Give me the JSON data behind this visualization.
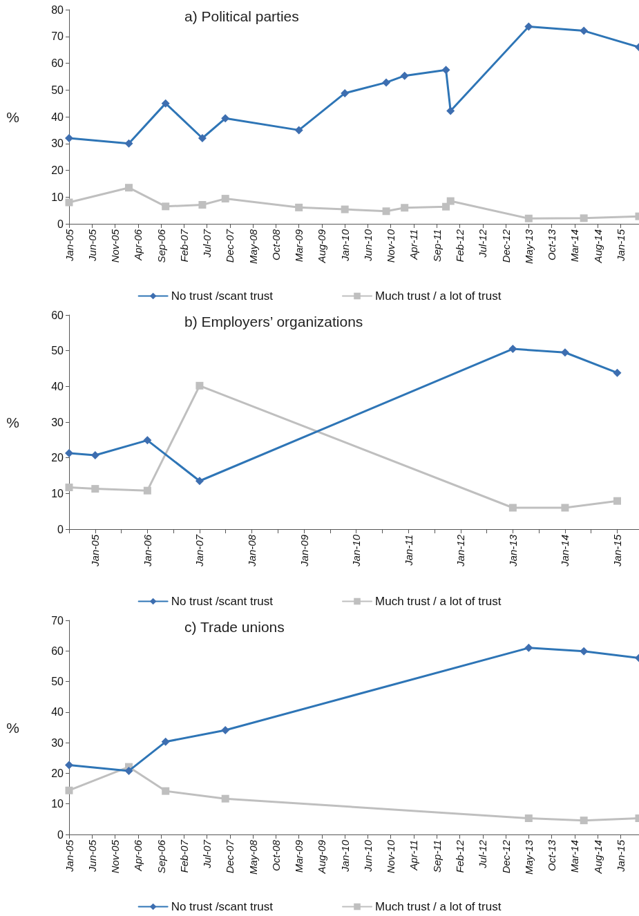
{
  "chart_data": [
    {
      "type": "line",
      "title": "a) Political parties",
      "ylabel": "%",
      "legend": "bottom",
      "grid": false,
      "xlim": [
        "2005-01",
        "2015-05"
      ],
      "ylim": [
        0,
        80
      ],
      "yticks": [
        0,
        10,
        20,
        30,
        40,
        50,
        60,
        70,
        80
      ],
      "xticks": [
        {
          "value": "2005-01",
          "label": "Jan-05"
        },
        {
          "value": "2005-06",
          "label": "Jun-05"
        },
        {
          "value": "2005-11",
          "label": "Nov-05"
        },
        {
          "value": "2006-04",
          "label": "Apr-06"
        },
        {
          "value": "2006-09",
          "label": "Sep-06"
        },
        {
          "value": "2007-02",
          "label": "Feb-07"
        },
        {
          "value": "2007-07",
          "label": "Jul-07"
        },
        {
          "value": "2007-12",
          "label": "Dec-07"
        },
        {
          "value": "2008-05",
          "label": "May-08"
        },
        {
          "value": "2008-10",
          "label": "Oct-08"
        },
        {
          "value": "2009-03",
          "label": "Mar-09"
        },
        {
          "value": "2009-08",
          "label": "Aug-09"
        },
        {
          "value": "2010-01",
          "label": "Jan-10"
        },
        {
          "value": "2010-06",
          "label": "Jun-10"
        },
        {
          "value": "2010-11",
          "label": "Nov-10"
        },
        {
          "value": "2011-04",
          "label": "Apr-11"
        },
        {
          "value": "2011-09",
          "label": "Sep-11"
        },
        {
          "value": "2012-02",
          "label": "Feb-12"
        },
        {
          "value": "2012-07",
          "label": "Jul-12"
        },
        {
          "value": "2012-12",
          "label": "Dec-12"
        },
        {
          "value": "2013-05",
          "label": "May-13"
        },
        {
          "value": "2013-10",
          "label": "Oct-13"
        },
        {
          "value": "2014-03",
          "label": "Mar-14"
        },
        {
          "value": "2014-08",
          "label": "Aug-14"
        },
        {
          "value": "2015-01",
          "label": "Jan-15"
        }
      ],
      "x": [
        "2005-01",
        "2006-02",
        "2006-10",
        "2007-06",
        "2007-11",
        "2009-03",
        "2010-01",
        "2010-10",
        "2011-02",
        "2011-11",
        "2011-12",
        "2013-05",
        "2014-05",
        "2015-05"
      ],
      "series": [
        {
          "name": "No trust /scant trust",
          "color": "#2e75b6",
          "marker": "diamond",
          "values": [
            32,
            30,
            45,
            32,
            39.4,
            35,
            48.8,
            52.8,
            55.3,
            57.5,
            42.2,
            73.7,
            72.1,
            66
          ]
        },
        {
          "name": "Much trust / a lot of trust",
          "color": "#bfbfbf",
          "marker": "square",
          "values": [
            8,
            13.5,
            6.5,
            7.1,
            9.4,
            6.1,
            5.4,
            4.7,
            6,
            6.4,
            8.5,
            2,
            2.1,
            2.8
          ]
        }
      ]
    },
    {
      "type": "line",
      "title": "b) Employers’ organizations",
      "ylabel": "%",
      "legend": "bottom",
      "grid": false,
      "xlim": [
        "2004-07",
        "2015-06"
      ],
      "ylim": [
        0,
        60
      ],
      "yticks": [
        0,
        10,
        20,
        30,
        40,
        50,
        60
      ],
      "xticks": [
        {
          "value": "2004-07",
          "label": null
        },
        {
          "value": "2005-01",
          "label": "Jan-05"
        },
        {
          "value": "2005-07",
          "label": null
        },
        {
          "value": "2006-01",
          "label": "Jan-06"
        },
        {
          "value": "2006-07",
          "label": null
        },
        {
          "value": "2007-01",
          "label": "Jan-07"
        },
        {
          "value": "2007-07",
          "label": null
        },
        {
          "value": "2008-01",
          "label": "Jan-08"
        },
        {
          "value": "2008-07",
          "label": null
        },
        {
          "value": "2009-01",
          "label": "Jan-09"
        },
        {
          "value": "2009-07",
          "label": null
        },
        {
          "value": "2010-01",
          "label": "Jan-10"
        },
        {
          "value": "2010-07",
          "label": null
        },
        {
          "value": "2011-01",
          "label": "Jan-11"
        },
        {
          "value": "2011-07",
          "label": null
        },
        {
          "value": "2012-01",
          "label": "Jan-12"
        },
        {
          "value": "2012-07",
          "label": null
        },
        {
          "value": "2013-01",
          "label": "Jan-13"
        },
        {
          "value": "2013-07",
          "label": null
        },
        {
          "value": "2014-01",
          "label": "Jan-14"
        },
        {
          "value": "2014-07",
          "label": null
        },
        {
          "value": "2015-01",
          "label": "Jan-15"
        }
      ],
      "x": [
        "2004-07",
        "2005-01",
        "2006-01",
        "2007-01",
        "2013-01",
        "2014-01",
        "2015-01"
      ],
      "series": [
        {
          "name": "No trust /scant trust",
          "color": "#2e75b6",
          "marker": "diamond",
          "values": [
            21.3,
            20.7,
            24.9,
            13.5,
            50.5,
            49.5,
            43.8
          ]
        },
        {
          "name": "Much trust / a lot of trust",
          "color": "#bfbfbf",
          "marker": "square",
          "values": [
            11.7,
            11.3,
            10.8,
            40.2,
            6,
            6,
            7.9
          ]
        }
      ]
    },
    {
      "type": "line",
      "title": "c) Trade unions",
      "ylabel": "%",
      "legend": "bottom",
      "grid": false,
      "xlim": [
        "2005-01",
        "2015-05"
      ],
      "ylim": [
        0,
        70
      ],
      "yticks": [
        0,
        10,
        20,
        30,
        40,
        50,
        60,
        70
      ],
      "xticks": [
        {
          "value": "2005-01",
          "label": "Jan-05"
        },
        {
          "value": "2005-06",
          "label": "Jun-05"
        },
        {
          "value": "2005-11",
          "label": "Nov-05"
        },
        {
          "value": "2006-04",
          "label": "Apr-06"
        },
        {
          "value": "2006-09",
          "label": "Sep-06"
        },
        {
          "value": "2007-02",
          "label": "Feb-07"
        },
        {
          "value": "2007-07",
          "label": "Jul-07"
        },
        {
          "value": "2007-12",
          "label": "Dec-07"
        },
        {
          "value": "2008-05",
          "label": "May-08"
        },
        {
          "value": "2008-10",
          "label": "Oct-08"
        },
        {
          "value": "2009-03",
          "label": "Mar-09"
        },
        {
          "value": "2009-08",
          "label": "Aug-09"
        },
        {
          "value": "2010-01",
          "label": "Jan-10"
        },
        {
          "value": "2010-06",
          "label": "Jun-10"
        },
        {
          "value": "2010-11",
          "label": "Nov-10"
        },
        {
          "value": "2011-04",
          "label": "Apr-11"
        },
        {
          "value": "2011-09",
          "label": "Sep-11"
        },
        {
          "value": "2012-02",
          "label": "Feb-12"
        },
        {
          "value": "2012-07",
          "label": "Jul-12"
        },
        {
          "value": "2012-12",
          "label": "Dec-12"
        },
        {
          "value": "2013-05",
          "label": "May-13"
        },
        {
          "value": "2013-10",
          "label": "Oct-13"
        },
        {
          "value": "2014-03",
          "label": "Mar-14"
        },
        {
          "value": "2014-08",
          "label": "Aug-14"
        },
        {
          "value": "2015-01",
          "label": "Jan-15"
        }
      ],
      "x": [
        "2005-01",
        "2006-02",
        "2006-10",
        "2007-11",
        "2013-05",
        "2014-05",
        "2015-05"
      ],
      "series": [
        {
          "name": "No trust /scant trust",
          "color": "#2e75b6",
          "marker": "diamond",
          "values": [
            22.7,
            20.8,
            30.3,
            34.1,
            61,
            59.9,
            57.7
          ]
        },
        {
          "name": "Much trust / a lot of trust",
          "color": "#bfbfbf",
          "marker": "square",
          "values": [
            14.4,
            22.1,
            14.2,
            11.7,
            5.3,
            4.6,
            5.3
          ]
        }
      ]
    }
  ]
}
